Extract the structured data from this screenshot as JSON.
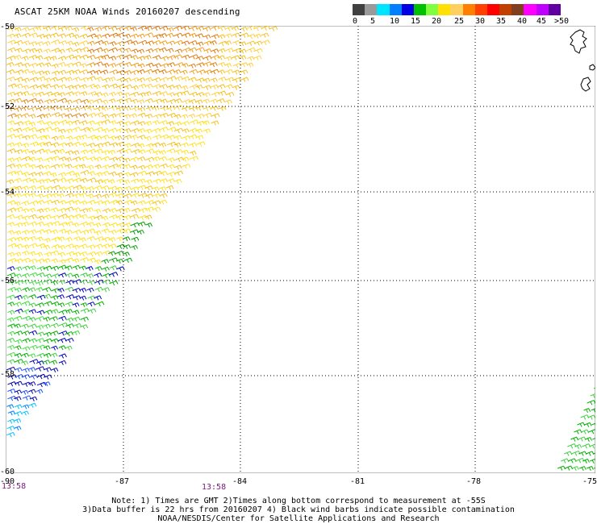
{
  "header": {
    "title": "ASCAT 25KM NOAA Winds 20160207 descending"
  },
  "legend": {
    "colors": [
      "#404040",
      "#9a9a9a",
      "#00e5ff",
      "#0080ff",
      "#0000e0",
      "#00c000",
      "#80ff40",
      "#ffe000",
      "#ffd060",
      "#ff8000",
      "#ff4000",
      "#ff0000",
      "#c04000",
      "#804020",
      "#ff00ff",
      "#c000ff",
      "#6000a0"
    ],
    "labels": [
      "0",
      "5",
      "10",
      "15",
      "20",
      "25",
      "30",
      "35",
      "40",
      "45",
      ">50 knots"
    ]
  },
  "map": {
    "lat_labels": [
      "-50",
      "-52",
      "-54",
      "-56",
      "-58",
      "-60"
    ],
    "lon_labels": [
      "-90",
      "-87",
      "-84",
      "-81",
      "-78",
      "-75"
    ],
    "time_labels": [
      "13:58",
      "13:58"
    ]
  },
  "notes": {
    "line1": "Note: 1) Times are GMT 2)Times along bottom correspond to measurement at -55S",
    "line2": "3)Data buffer is 22 hrs from 20160207 4) Black wind barbs indicate possible contamination",
    "line3": "NOAA/NESDIS/Center for Satellite Applications and Research"
  }
}
